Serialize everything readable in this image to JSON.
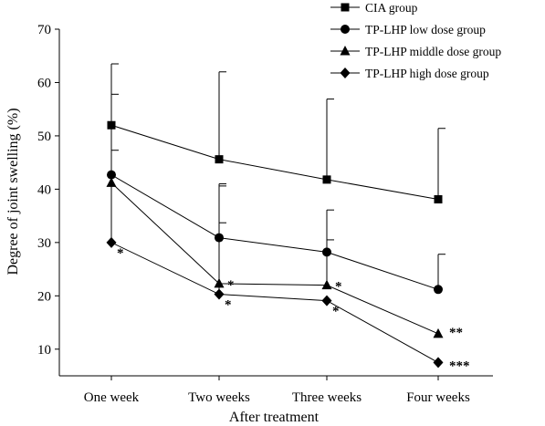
{
  "chart_data": {
    "type": "line",
    "title": "",
    "xlabel": "After treatment",
    "ylabel": "Degree of joint swelling (%)",
    "ylim": [
      5,
      70
    ],
    "yticks": [
      10,
      20,
      30,
      40,
      50,
      60,
      70
    ],
    "categories": [
      "One week",
      "Two weeks",
      "Three weeks",
      "Four weeks"
    ],
    "legend_position": "top-right",
    "grid": false,
    "series": [
      {
        "name": "CIA group",
        "marker": "square",
        "values": [
          52.0,
          45.6,
          41.8,
          38.1
        ],
        "error_upper": [
          63.5,
          62.0,
          56.9,
          51.4
        ],
        "error_lower": [
          null,
          null,
          null,
          null
        ],
        "significance": [
          "",
          "",
          "",
          ""
        ]
      },
      {
        "name": "TP-LHP low dose group",
        "marker": "circle",
        "values": [
          42.7,
          30.9,
          28.2,
          21.2
        ],
        "error_upper": [
          57.8,
          41.0,
          36.1,
          27.8
        ],
        "error_lower": [
          null,
          null,
          null,
          null
        ],
        "significance": [
          "",
          "",
          "",
          ""
        ]
      },
      {
        "name": "TP-LHP middle dose group",
        "marker": "triangle",
        "values": [
          41.2,
          22.3,
          22.0,
          12.9
        ],
        "error_upper": [
          null,
          null,
          null,
          null
        ],
        "error_lower": [
          null,
          33.7,
          30.5,
          null
        ],
        "significance": [
          "",
          "*",
          "*",
          "**"
        ]
      },
      {
        "name": "TP-LHP high dose group",
        "marker": "diamond",
        "values": [
          30.0,
          20.3,
          19.1,
          7.5
        ],
        "error_upper": [
          47.3,
          40.6,
          null,
          null
        ],
        "error_lower": [
          null,
          null,
          null,
          null
        ],
        "significance": [
          "*",
          "*",
          "*",
          "***"
        ]
      }
    ]
  }
}
